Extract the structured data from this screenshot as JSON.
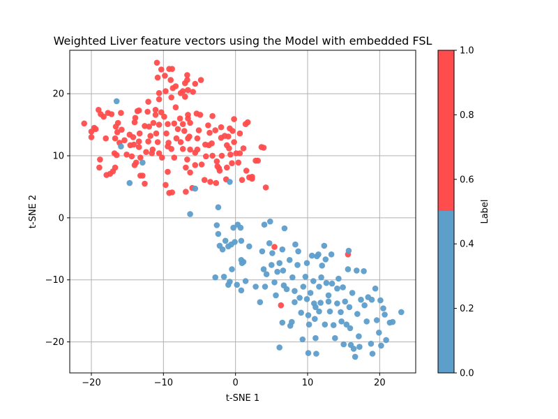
{
  "chart_data": {
    "type": "scatter",
    "title": "Weighted Liver feature vectors using the Model with embedded FSL",
    "xlabel": "t-SNE 1",
    "ylabel": "t-SNE 2",
    "xlim": [
      -23,
      25
    ],
    "ylim": [
      -25,
      27
    ],
    "xticks": [
      -20,
      -10,
      0,
      10,
      20
    ],
    "yticks": [
      -20,
      -10,
      0,
      10,
      20
    ],
    "grid": true,
    "colorbar": {
      "label": "Label",
      "range": [
        0,
        1
      ],
      "ticks": [
        "0.0",
        "0.2",
        "0.4",
        "0.6",
        "0.8",
        "1.0"
      ],
      "colors": {
        "low": "#5d9ecb",
        "high": "#ff4c4c"
      }
    },
    "series": [
      {
        "label_value": 1,
        "color": "#ff4c4c",
        "points": [
          [
            -21,
            15.2
          ],
          [
            -20,
            13.9
          ],
          [
            -20,
            13
          ],
          [
            -19.6,
            14.5
          ],
          [
            -19.4,
            14.3
          ],
          [
            -19,
            17.4
          ],
          [
            -18.7,
            16.7
          ],
          [
            -18.3,
            16.3
          ],
          [
            -17.7,
            16.9
          ],
          [
            -17.2,
            16.7
          ],
          [
            -18.8,
            9.4
          ],
          [
            -18.9,
            8.1
          ],
          [
            -18,
            12.8
          ],
          [
            -17.9,
            6.9
          ],
          [
            -17.4,
            7.1
          ],
          [
            -17,
            7.5
          ],
          [
            -16.7,
            8.1
          ],
          [
            -16.8,
            10.4
          ],
          [
            -16.5,
            10.1
          ],
          [
            -16.1,
            12.1
          ],
          [
            -16.7,
            12.8
          ],
          [
            -16.4,
            13.8
          ],
          [
            -16.6,
            14.7
          ],
          [
            -16.3,
            15.3
          ],
          [
            -15.9,
            16.9
          ],
          [
            -15.8,
            14.2
          ],
          [
            -15.4,
            12.5
          ],
          [
            -15.1,
            10.2
          ],
          [
            -14.7,
            13.4
          ],
          [
            -14.6,
            11.7
          ],
          [
            -14.2,
            13
          ],
          [
            -14.1,
            11.8
          ],
          [
            -14,
            15.4
          ],
          [
            -14.4,
            9.9
          ],
          [
            -14,
            8.5
          ],
          [
            -13.8,
            8.9
          ],
          [
            -13.9,
            16.1
          ],
          [
            -13.6,
            17.2
          ],
          [
            -13.4,
            17.3
          ],
          [
            -13.3,
            13.6
          ],
          [
            -13.4,
            12.3
          ],
          [
            -13.4,
            11.4
          ],
          [
            -13.2,
            9.7
          ],
          [
            -13.2,
            6.8
          ],
          [
            -12.9,
            6.8
          ],
          [
            -12.6,
            5.5
          ],
          [
            -12.6,
            14.8
          ],
          [
            -12.4,
            10.6
          ],
          [
            -12.1,
            12.3
          ],
          [
            -12,
            14.7
          ],
          [
            -12.2,
            17.1
          ],
          [
            -12.1,
            18.7
          ],
          [
            -11.8,
            13.2
          ],
          [
            -11.6,
            10.4
          ],
          [
            -11.5,
            11
          ],
          [
            -11.4,
            15.3
          ],
          [
            -11.1,
            16.6
          ],
          [
            -11,
            13.6
          ],
          [
            -11.1,
            17.4
          ],
          [
            -10.8,
            12.2
          ],
          [
            -10.6,
            10.4
          ],
          [
            -10.2,
            9.7
          ],
          [
            -10.6,
            15
          ],
          [
            -10.6,
            19.1
          ],
          [
            -10.8,
            22.6
          ],
          [
            -10.9,
            25
          ],
          [
            -10.3,
            23.9
          ],
          [
            -10.6,
            20.1
          ],
          [
            -10.3,
            17
          ],
          [
            -9.9,
            16.3
          ],
          [
            -9.7,
            20.4
          ],
          [
            -9.8,
            22.9
          ],
          [
            -9.7,
            5.3
          ],
          [
            -9.4,
            7.4
          ],
          [
            -9.3,
            12.1
          ],
          [
            -9.6,
            13.6
          ],
          [
            -9.4,
            15.1
          ],
          [
            -9.4,
            11.5
          ],
          [
            -9.2,
            24
          ],
          [
            -9.0,
            22.2
          ],
          [
            -8.8,
            24
          ],
          [
            -8.7,
            20.9
          ],
          [
            -8.9,
            19.4
          ],
          [
            -8.9,
            11.1
          ],
          [
            -9.2,
            4
          ],
          [
            -8.8,
            4.1
          ],
          [
            -8.5,
            9.7
          ],
          [
            -8.5,
            15.2
          ],
          [
            -8.3,
            17.8
          ],
          [
            -8.3,
            21.2
          ],
          [
            -8.2,
            12.8
          ],
          [
            -8.0,
            14.3
          ],
          [
            -7.7,
            16
          ],
          [
            -7.6,
            20.1
          ],
          [
            -7.3,
            20.4
          ],
          [
            -7.6,
            12.2
          ],
          [
            -7.3,
            11.1
          ],
          [
            -7.3,
            15.1
          ],
          [
            -7.1,
            14
          ],
          [
            -7.0,
            19.5
          ],
          [
            -7.0,
            21.7
          ],
          [
            -6.7,
            22.2
          ],
          [
            -6.6,
            20.6
          ],
          [
            -6.7,
            23
          ],
          [
            -6.6,
            16.6
          ],
          [
            -6.6,
            16
          ],
          [
            -6.3,
            15.3
          ],
          [
            -6.4,
            13.1
          ],
          [
            -6.6,
            12.8
          ],
          [
            -6.3,
            11
          ],
          [
            -6.7,
            9.4
          ],
          [
            -6.9,
            8.1
          ],
          [
            -6.9,
            4.2
          ],
          [
            -6.3,
            7.3
          ],
          [
            -6.0,
            4.8
          ],
          [
            -5.9,
            20.3
          ],
          [
            -5.6,
            21.6
          ],
          [
            -5.6,
            10.5
          ],
          [
            -5.6,
            8.5
          ],
          [
            -5.4,
            16.8
          ],
          [
            -5.3,
            12.8
          ],
          [
            -5.3,
            11
          ],
          [
            -5.1,
            14.1
          ],
          [
            -4.9,
            16.6
          ],
          [
            -4.8,
            22.2
          ],
          [
            -4.7,
            8.6
          ],
          [
            -4.3,
            6.1
          ],
          [
            -4.1,
            9.9
          ],
          [
            -4.2,
            11.8
          ],
          [
            -3.8,
            14.9
          ],
          [
            -3.7,
            11.7
          ],
          [
            -3.6,
            13.7
          ],
          [
            -3.5,
            5.8
          ],
          [
            -3.3,
            12
          ],
          [
            -3.2,
            16.4
          ],
          [
            -3.2,
            10
          ],
          [
            -2.8,
            14.1
          ],
          [
            -2.6,
            9.1
          ],
          [
            -2.7,
            5.6
          ],
          [
            -2.5,
            8.3
          ],
          [
            -2.3,
            8
          ],
          [
            -2.2,
            7.6
          ],
          [
            -2,
            14.6
          ],
          [
            -1.9,
            10
          ],
          [
            -2,
            12.9
          ],
          [
            -1.5,
            13.2
          ],
          [
            -1.2,
            11.7
          ],
          [
            -1.2,
            8.1
          ],
          [
            -1.3,
            6.2
          ],
          [
            -1.0,
            13.1
          ],
          [
            -0.8,
            14.4
          ],
          [
            -0.9,
            11.2
          ],
          [
            -0.7,
            10.2
          ],
          [
            -0.5,
            8.8
          ],
          [
            -0.4,
            14
          ],
          [
            -0.2,
            12.2
          ],
          [
            -0.2,
            15.9
          ],
          [
            0.1,
            10.4
          ],
          [
            0.4,
            8.9
          ],
          [
            0.6,
            10.4
          ],
          [
            0.6,
            13.6
          ],
          [
            0.9,
            6.1
          ],
          [
            1.1,
            11.2
          ],
          [
            1.4,
            15.1
          ],
          [
            1.5,
            7.6
          ],
          [
            1.7,
            15.4
          ],
          [
            1.9,
            6.5
          ],
          [
            2.3,
            6.3
          ],
          [
            2.3,
            6.6
          ],
          [
            2.8,
            9.2
          ],
          [
            3.1,
            9.2
          ],
          [
            3.6,
            11.4
          ],
          [
            3.9,
            11.3
          ],
          [
            4.2,
            4.9
          ],
          [
            5.4,
            -4.7
          ],
          [
            6.3,
            -14.1
          ],
          [
            15.6,
            -5.9
          ]
        ]
      },
      {
        "label_value": 0,
        "color": "#5d9ecb",
        "points": [
          [
            -16.5,
            18.8
          ],
          [
            -15.9,
            11.5
          ],
          [
            -14.7,
            5.6
          ],
          [
            -12.9,
            8.9
          ],
          [
            -6.3,
            0.6
          ],
          [
            -5.6,
            4.7
          ],
          [
            -2.4,
            1.7
          ],
          [
            -0.8,
            5.8
          ],
          [
            -2.6,
            -1.2
          ],
          [
            -2.4,
            -2.6
          ],
          [
            -2.2,
            -4.5
          ],
          [
            -1.8,
            -5.1
          ],
          [
            -1.4,
            -3.7
          ],
          [
            -1.0,
            -4.6
          ],
          [
            -0.6,
            -4.3
          ],
          [
            -0.3,
            -1.6
          ],
          [
            -0.1,
            -3.9
          ],
          [
            0.3,
            -1.1
          ],
          [
            0.7,
            -1.6
          ],
          [
            0.8,
            -3.7
          ],
          [
            0.8,
            -6.8
          ],
          [
            0.9,
            -7.3
          ],
          [
            1.1,
            -7.1
          ],
          [
            1.9,
            -4.6
          ],
          [
            -0.5,
            -8.3
          ],
          [
            -2.8,
            -9.6
          ],
          [
            -1.6,
            -9.5
          ],
          [
            -1.0,
            -10.8
          ],
          [
            -0.8,
            -10.3
          ],
          [
            0.2,
            -10.8
          ],
          [
            0.8,
            -11.7
          ],
          [
            1.4,
            -10.2
          ],
          [
            2.8,
            -11.1
          ],
          [
            3.4,
            -13.6
          ],
          [
            3.7,
            -5.4
          ],
          [
            3.9,
            -8.3
          ],
          [
            4.3,
            -9.1
          ],
          [
            4.1,
            -11.1
          ],
          [
            4.0,
            -1.1
          ],
          [
            4.7,
            -4.1
          ],
          [
            4.8,
            -0.6
          ],
          [
            5.1,
            -5.7
          ],
          [
            5.0,
            -7.6
          ],
          [
            5.4,
            -10.4
          ],
          [
            5.6,
            -12.5
          ],
          [
            5.8,
            -8.7
          ],
          [
            6.1,
            -7.3
          ],
          [
            6.5,
            -5.1
          ],
          [
            6.6,
            -8.5
          ],
          [
            6.7,
            -10.9
          ],
          [
            6.5,
            -16.9
          ],
          [
            6.1,
            -20.9
          ],
          [
            6.8,
            -1.7
          ],
          [
            7.1,
            -11.5
          ],
          [
            7.5,
            -6.8
          ],
          [
            7.6,
            -17.4
          ],
          [
            7.8,
            -16.8
          ],
          [
            7.9,
            -9.6
          ],
          [
            8.2,
            -11.8
          ],
          [
            8.2,
            -13.6
          ],
          [
            8.3,
            -4.3
          ],
          [
            8.7,
            -5.4
          ],
          [
            8.6,
            -7.6
          ],
          [
            8.9,
            -12.9
          ],
          [
            9.1,
            -15.3
          ],
          [
            9.3,
            -19.6
          ],
          [
            9.4,
            -11.1
          ],
          [
            9.7,
            -9.5
          ],
          [
            9.9,
            -7.3
          ],
          [
            9.9,
            -13.1
          ],
          [
            10.1,
            -15.7
          ],
          [
            10.2,
            -17.2
          ],
          [
            10.1,
            -21.8
          ],
          [
            10.4,
            -12.1
          ],
          [
            10.6,
            -6.1
          ],
          [
            10.8,
            -10.2
          ],
          [
            10.9,
            -13.8
          ],
          [
            11.1,
            -14.4
          ],
          [
            11.0,
            -16.3
          ],
          [
            11.3,
            -6.2
          ],
          [
            11.5,
            -5.9
          ],
          [
            11.1,
            -19.4
          ],
          [
            11.2,
            -21.9
          ],
          [
            11.6,
            -11.1
          ],
          [
            11.8,
            -13.7
          ],
          [
            11.6,
            -15.1
          ],
          [
            11.9,
            -9.6
          ],
          [
            12.0,
            -7.7
          ],
          [
            12.3,
            -4.5
          ],
          [
            12.5,
            -6.7
          ],
          [
            12.6,
            -10.5
          ],
          [
            12.4,
            -17.2
          ],
          [
            12.9,
            -12.5
          ],
          [
            12.9,
            -13.5
          ],
          [
            13.1,
            -15.1
          ],
          [
            13.3,
            -5.9
          ],
          [
            13.4,
            -10.6
          ],
          [
            13.6,
            -17.3
          ],
          [
            13.8,
            -19.4
          ],
          [
            14.1,
            -11.4
          ],
          [
            14.1,
            -13.8
          ],
          [
            14.3,
            -9.8
          ],
          [
            14.6,
            -15.2
          ],
          [
            14.7,
            -16.7
          ],
          [
            14.9,
            -11.2
          ],
          [
            15.0,
            -20.4
          ],
          [
            15.2,
            -13.5
          ],
          [
            15.4,
            -17.2
          ],
          [
            15.6,
            -8.3
          ],
          [
            15.7,
            -5.3
          ],
          [
            15.8,
            -14.4
          ],
          [
            15.9,
            -17.8
          ],
          [
            16.0,
            -20.5
          ],
          [
            16.2,
            -12.1
          ],
          [
            16.4,
            -21.1
          ],
          [
            16.6,
            -22.4
          ],
          [
            16.8,
            -8.5
          ],
          [
            16.9,
            -15.5
          ],
          [
            17.1,
            -19.1
          ],
          [
            17.2,
            -20.8
          ],
          [
            17.4,
            -13.2
          ],
          [
            17.8,
            -8.6
          ],
          [
            17.9,
            -14.1
          ],
          [
            18.2,
            -16.7
          ],
          [
            18.4,
            -12.8
          ],
          [
            18.8,
            -20.3
          ],
          [
            18.9,
            -13.2
          ],
          [
            19.0,
            -21.9
          ],
          [
            19.4,
            -11.4
          ],
          [
            19.6,
            -16.5
          ],
          [
            19.9,
            -18.5
          ],
          [
            20.2,
            -20.6
          ],
          [
            20.1,
            -13.3
          ],
          [
            20.5,
            -14.6
          ],
          [
            20.9,
            -19.7
          ],
          [
            20.7,
            -15.6
          ],
          [
            21.4,
            -16.9
          ],
          [
            21.8,
            -16.8
          ],
          [
            23.0,
            -15.2
          ]
        ]
      }
    ]
  }
}
